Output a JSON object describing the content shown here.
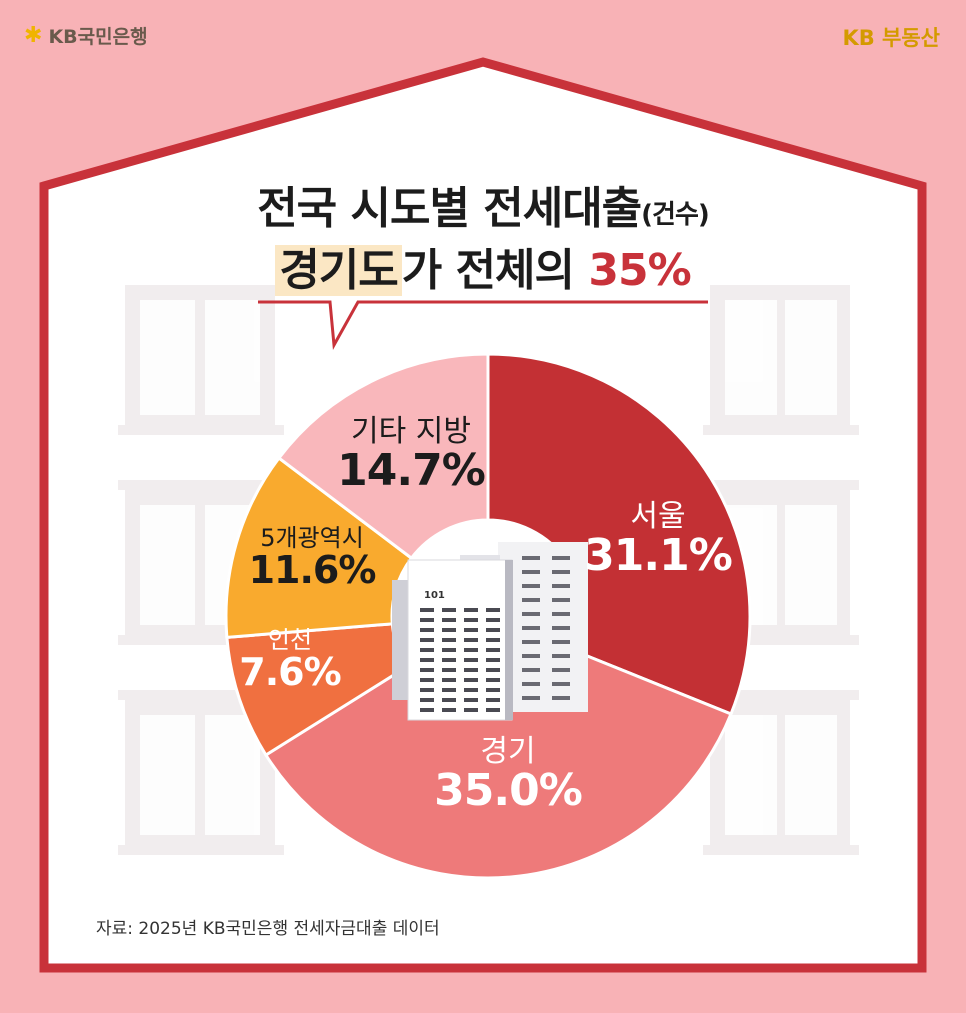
{
  "brand": {
    "left": "KB국민은행",
    "right_kb": "KB",
    "right_text": "부동산"
  },
  "title": {
    "line1": "전국 시도별 전세대출",
    "line1_suffix": "(건수)",
    "line2_highlight": "경기도",
    "line2_rest": "가 전체의 ",
    "line2_red": "35%"
  },
  "source": "자료: 2025년 KB국민은행 전세자금대출 데이터",
  "building_number": "101",
  "colors": {
    "background": "#f8b2b6",
    "house_border": "#c8323a",
    "accent_red": "#c8323a"
  },
  "chart_data": {
    "type": "pie",
    "donut": true,
    "title": "전국 시도별 전세대출(건수)",
    "unit": "%",
    "slices": [
      {
        "label": "서울",
        "value": 31.1,
        "display": "31.1%",
        "color": "#c33034",
        "text_color": "#ffffff"
      },
      {
        "label": "경기",
        "value": 35.0,
        "display": "35.0%",
        "color": "#ee7a7a",
        "text_color": "#ffffff"
      },
      {
        "label": "인천",
        "value": 7.6,
        "display": "7.6%",
        "color": "#f07040",
        "text_color": "#ffffff"
      },
      {
        "label": "5개광역시",
        "value": 11.6,
        "display": "11.6%",
        "color": "#f9aa2e",
        "text_color": "#1c1c1c"
      },
      {
        "label": "기타 지방",
        "value": 14.7,
        "display": "14.7%",
        "color": "#f9b7bb",
        "text_color": "#1c1c1c"
      }
    ]
  }
}
